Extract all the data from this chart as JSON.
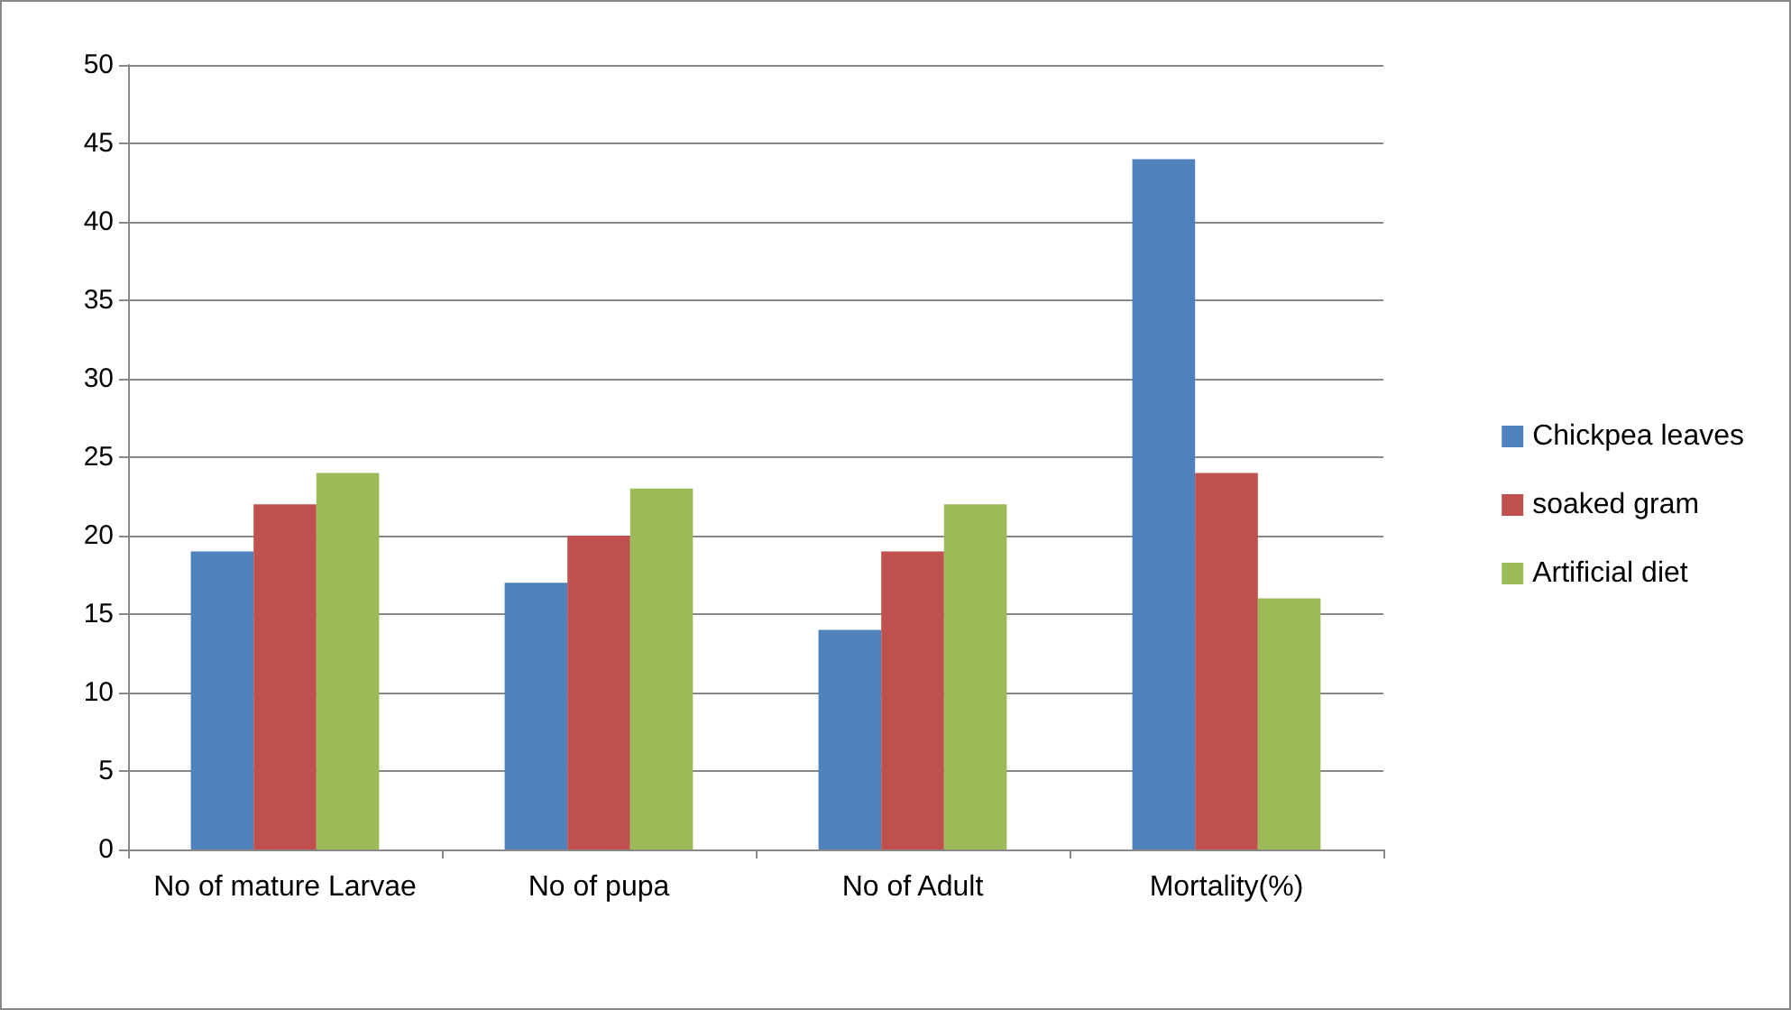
{
  "chart_data": {
    "type": "bar",
    "categories": [
      "No of mature Larvae",
      "No of pupa",
      "No of Adult",
      "Mortality(%)"
    ],
    "series": [
      {
        "name": "Chickpea leaves",
        "color": "#4f81bd",
        "values": [
          19,
          17,
          14,
          44
        ]
      },
      {
        "name": "soaked gram",
        "color": "#c0504d",
        "values": [
          22,
          20,
          19,
          24
        ]
      },
      {
        "name": "Artificial diet",
        "color": "#9bbb59",
        "values": [
          24,
          23,
          22,
          16
        ]
      }
    ],
    "ylim": [
      0,
      50
    ],
    "yticks": [
      0,
      5,
      10,
      15,
      20,
      25,
      30,
      35,
      40,
      45,
      50
    ],
    "grid": "y",
    "legend": "right"
  }
}
